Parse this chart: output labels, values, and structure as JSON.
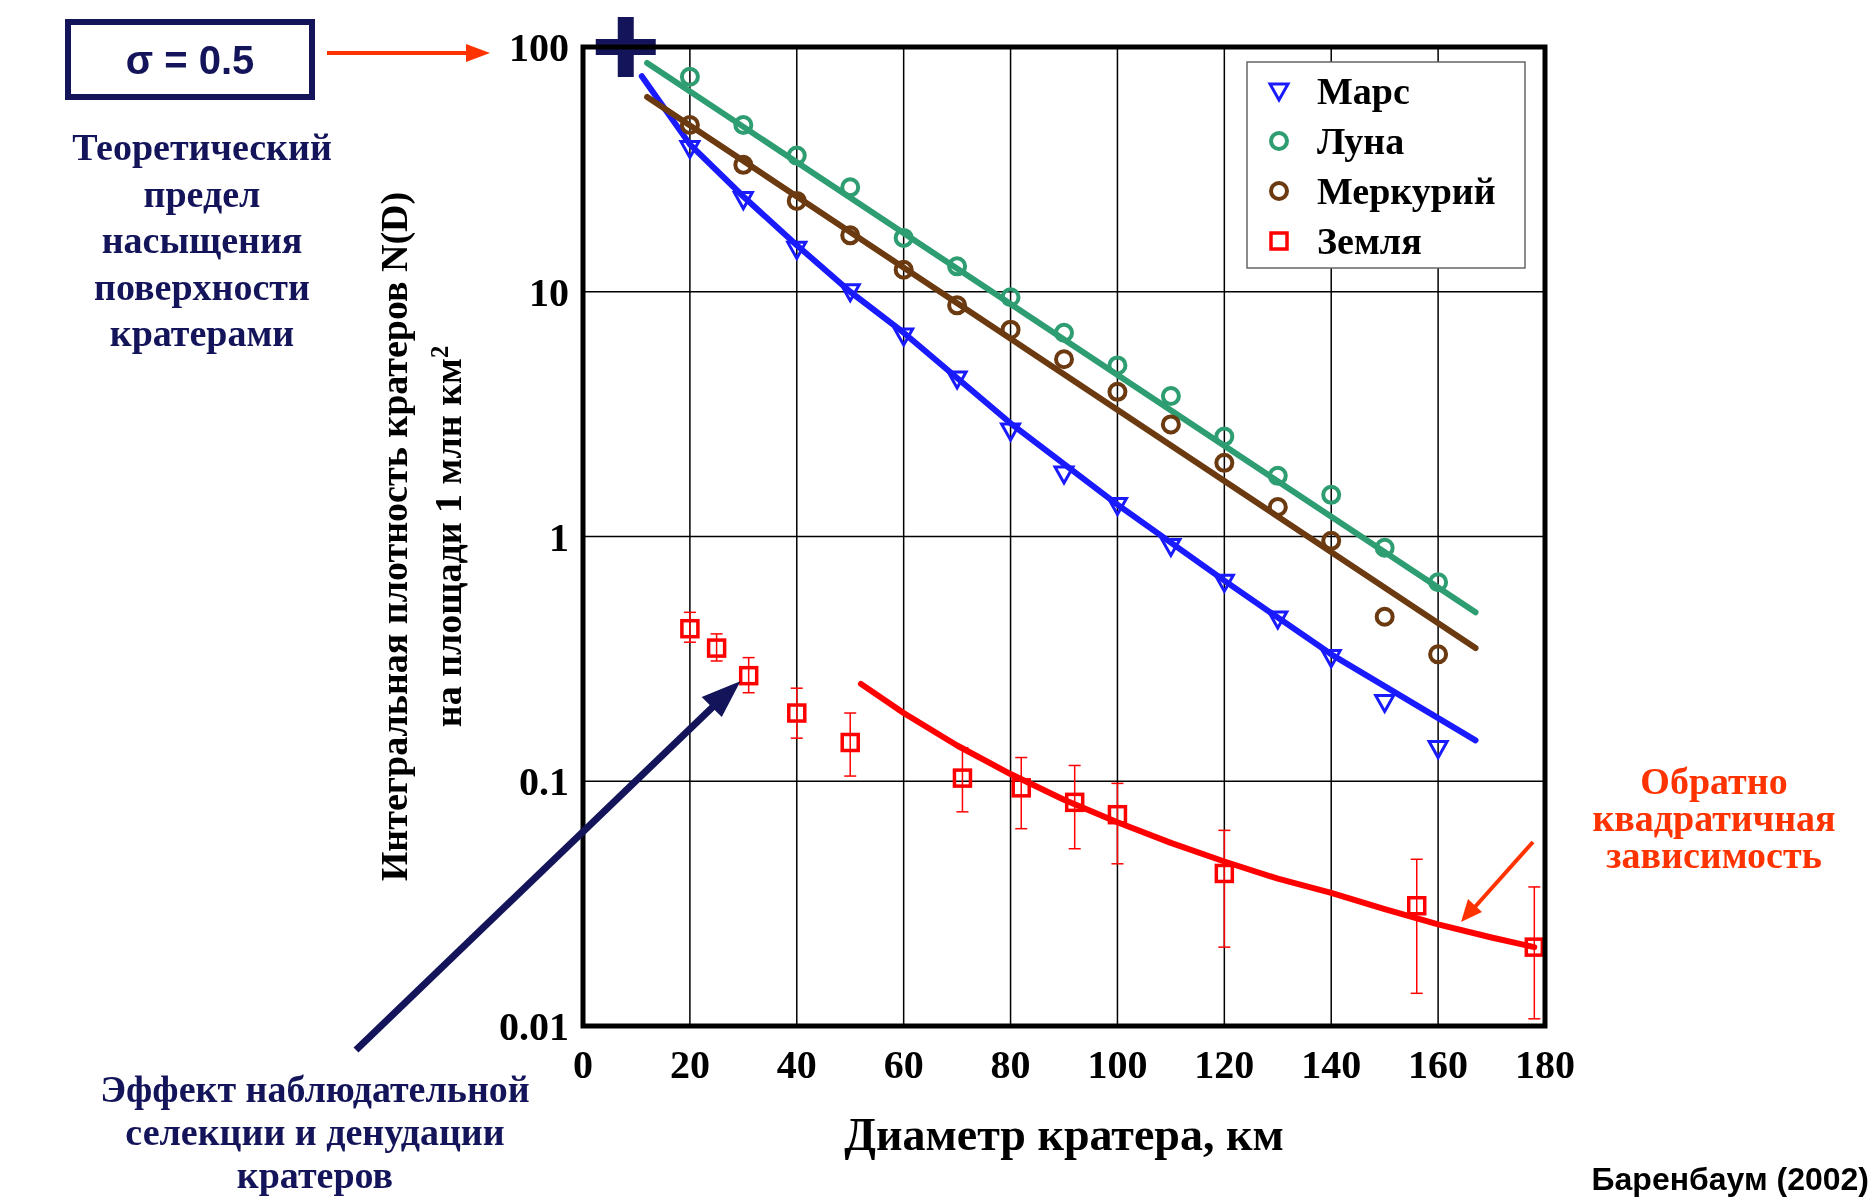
{
  "chart_data": {
    "type": "scatter",
    "xlabel": "Диаметр кратера, км",
    "ylabel": "Интегральная плотность кратеров N(D) на площади 1 млн км$^{2}$",
    "log": "y",
    "grid": true,
    "legend": "top right",
    "xlim": [
      0,
      180
    ],
    "xticks": [
      0,
      20,
      40,
      60,
      80,
      100,
      120,
      140,
      160,
      180
    ],
    "ylim": [
      0.01,
      100
    ],
    "yticks": [
      0.01,
      0.1,
      1,
      10,
      100
    ],
    "series": [
      {
        "marker": "cross",
        "color": "#14145a",
        "x": [
          8
        ],
        "values": [
          100
        ]
      },
      {
        "type": "line",
        "color": "#1a1aff",
        "x": [
          11,
          20,
          30,
          40,
          50,
          60,
          80,
          100,
          120,
          140,
          167
        ],
        "values": [
          76,
          40,
          24.5,
          15.5,
          10,
          6.8,
          2.9,
          1.35,
          0.66,
          0.33,
          0.147
        ]
      },
      {
        "type": "line",
        "color": "#2e9e72",
        "x": [
          12,
          167
        ],
        "values": [
          86,
          0.49
        ]
      },
      {
        "type": "line",
        "color": "#6b3a10",
        "x": [
          12,
          167
        ],
        "values": [
          62.5,
          0.35
        ]
      },
      {
        "type": "line",
        "color": "#ff0000",
        "x": [
          52,
          60,
          70,
          80,
          90,
          100,
          110,
          120,
          130,
          140,
          150,
          160,
          170,
          178
        ],
        "values": [
          0.25,
          0.19,
          0.14,
          0.107,
          0.084,
          0.068,
          0.056,
          0.047,
          0.04,
          0.035,
          0.03,
          0.026,
          0.023,
          0.021
        ]
      },
      {
        "name": "Марс",
        "marker": "triangle",
        "color": "#1a1aff",
        "x": [
          20,
          30,
          40,
          50,
          60,
          70,
          80,
          90,
          100,
          110,
          120,
          130,
          140,
          150,
          160
        ],
        "values": [
          38.5,
          23.8,
          14.9,
          10,
          6.6,
          4.4,
          2.7,
          1.8,
          1.34,
          0.91,
          0.65,
          0.46,
          0.32,
          0.21,
          0.136
        ]
      },
      {
        "name": "Луна",
        "marker": "circle",
        "color": "#2e9e72",
        "x": [
          20,
          30,
          40,
          50,
          60,
          70,
          80,
          90,
          100,
          110,
          120,
          130,
          140,
          150,
          160
        ],
        "values": [
          75.6,
          48,
          36,
          26.7,
          16.6,
          12.7,
          9.5,
          6.8,
          5,
          3.75,
          2.56,
          1.77,
          1.48,
          0.9,
          0.65
        ]
      },
      {
        "name": "Меркурий",
        "marker": "circle",
        "color": "#6b3a10",
        "x": [
          20,
          30,
          40,
          50,
          60,
          70,
          80,
          90,
          100,
          110,
          120,
          130,
          140,
          150,
          160
        ],
        "values": [
          48,
          33,
          23.5,
          17,
          12.3,
          8.8,
          7,
          5.3,
          3.9,
          2.87,
          2,
          1.32,
          0.96,
          0.47,
          0.33
        ]
      },
      {
        "name": "Земля",
        "marker": "square",
        "color": "#ff0000",
        "x": [
          20,
          25,
          31,
          40,
          50,
          71,
          82,
          92,
          100,
          120,
          156,
          178
        ],
        "values": [
          0.42,
          0.35,
          0.27,
          0.19,
          0.144,
          0.103,
          0.094,
          0.082,
          0.073,
          0.042,
          0.031,
          0.021
        ],
        "errors": [
          [
            0.37,
            0.49
          ],
          [
            0.31,
            0.4
          ],
          [
            0.23,
            0.32
          ],
          [
            0.15,
            0.24
          ],
          [
            0.105,
            0.19
          ],
          [
            0.075,
            0.137
          ],
          [
            0.064,
            0.125
          ],
          [
            0.053,
            0.116
          ],
          [
            0.046,
            0.098
          ],
          [
            0.021,
            0.063
          ],
          [
            0.0136,
            0.048
          ],
          [
            0.0107,
            0.037
          ]
        ]
      }
    ],
    "annotations": [
      "σ = 0.5",
      "Теоретический предел насыщения поверхности кратерами",
      "Эффект наблюдательной селекции и денудации кратеров",
      "Обратно квадратичная зависимость",
      "Баренбаум (2002)"
    ]
  }
}
